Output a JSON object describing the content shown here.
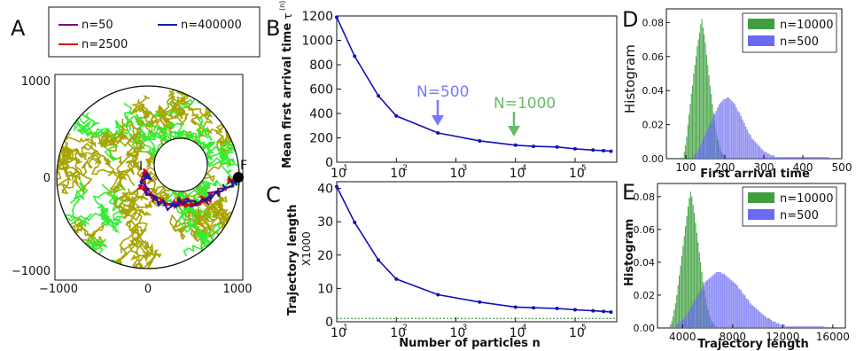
{
  "panel_letters": [
    "A",
    "B",
    "C",
    "D",
    "E"
  ],
  "colors": {
    "blue_line": "#1111bb",
    "green_hist": "#3f9f3f",
    "blue_hist": "#6a6af2",
    "overlap_hist": "#274f86",
    "annot_blue": "#7777ff",
    "annot_green": "#66bb66",
    "traj_n50": "#800080",
    "traj_n2500": "#e00000",
    "traj_n400000": "#1a1aa0",
    "fill_olive": "#a7a400",
    "fill_lime": "#33ee33",
    "dotted_green": "#2a7a2a"
  },
  "chart_data": [
    {
      "panel": "A",
      "type": "scatter",
      "title": "",
      "legend": {
        "placement": "top",
        "entries": [
          {
            "label": "n=50",
            "color": "#800080"
          },
          {
            "label": "n=400000",
            "color": "#1a1aa0"
          },
          {
            "label": "n=2500",
            "color": "#e00000"
          }
        ]
      },
      "xlim": [
        -1100,
        1100
      ],
      "ylim": [
        -1100,
        1100
      ],
      "xticks": [
        "−1000",
        "0",
        "1000"
      ],
      "yticks": [
        "1000",
        "0",
        "−1000"
      ],
      "annotations": [
        {
          "text": "I",
          "x": -30,
          "y": 60
        },
        {
          "text": "F",
          "x": 1050,
          "y": 40
        }
      ],
      "domain": {
        "outer_radius": 1000,
        "inner_radius": 300,
        "target": [
          1000,
          0
        ],
        "start": [
          -100,
          20
        ]
      }
    },
    {
      "panel": "B",
      "type": "line",
      "xlabel": "",
      "ylabel": "Mean first arrival time",
      "ylabel_superscript": "(n)",
      "ylabel_prefix": "τ",
      "xscale": "log",
      "xlim": [
        10,
        500000
      ],
      "ylim": [
        0,
        1200
      ],
      "xticks": [
        "10",
        "10",
        "10",
        "10",
        "10"
      ],
      "xtick_exponents": [
        "1",
        "2",
        "3",
        "4",
        "5"
      ],
      "yticks": [
        "0",
        "200",
        "400",
        "600",
        "800",
        "1000",
        "1200"
      ],
      "series": [
        {
          "x": [
            10,
            20,
            50,
            100,
            500,
            2500,
            10000,
            20000,
            50000,
            100000,
            200000,
            300000,
            400000
          ],
          "values": [
            1190,
            870,
            545,
            380,
            240,
            175,
            140,
            130,
            125,
            110,
            100,
            95,
            90
          ]
        }
      ],
      "annotations": [
        {
          "text": "N=500",
          "x": 500,
          "y": 240,
          "color": "#7777ff"
        },
        {
          "text": "N=1000",
          "x": 10000,
          "y": 140,
          "color": "#66bb66"
        }
      ],
      "grid": false
    },
    {
      "panel": "C",
      "type": "line",
      "xlabel": "Number of particles n",
      "ylabel": "Trajectory length",
      "ylabel_sub": "X1000",
      "xscale": "log",
      "xlim": [
        10,
        500000
      ],
      "ylim": [
        0,
        42
      ],
      "xticks": [
        "10",
        "10",
        "10",
        "10",
        "10"
      ],
      "xtick_exponents": [
        "1",
        "2",
        "3",
        "4",
        "5"
      ],
      "yticks": [
        "0",
        "10",
        "20",
        "30",
        "40"
      ],
      "series": [
        {
          "x": [
            10,
            20,
            50,
            100,
            500,
            2500,
            10000,
            20000,
            50000,
            100000,
            200000,
            300000,
            400000
          ],
          "values": [
            40.5,
            29.8,
            18.5,
            12.8,
            8.1,
            5.9,
            4.4,
            4.2,
            4.0,
            3.6,
            3.3,
            3.1,
            2.9
          ]
        }
      ],
      "reference_line": 1.0,
      "grid": false
    },
    {
      "panel": "D",
      "type": "bar",
      "xlabel": "First arrival time",
      "ylabel": "Histogram",
      "xlim": [
        50,
        500
      ],
      "ylim": [
        0,
        0.088
      ],
      "xticks": [
        "100",
        "200",
        "300",
        "400",
        "500"
      ],
      "yticks": [
        "0.00",
        "0.02",
        "0.04",
        "0.06",
        "0.08"
      ],
      "legend": {
        "placement": "top-right"
      },
      "series": [
        {
          "name": "n=10000",
          "color": "#3f9f3f",
          "bin_start": 95,
          "bin_width": 3,
          "values": [
            0.004,
            0.008,
            0.013,
            0.02,
            0.026,
            0.032,
            0.038,
            0.043,
            0.05,
            0.055,
            0.06,
            0.066,
            0.07,
            0.074,
            0.079,
            0.082,
            0.077,
            0.073,
            0.068,
            0.061,
            0.055,
            0.049,
            0.043,
            0.038,
            0.032,
            0.027,
            0.022,
            0.018,
            0.014,
            0.011,
            0.008,
            0.006,
            0.004,
            0.003,
            0.002,
            0.001
          ]
        },
        {
          "name": "n=500",
          "color": "#6a6af2",
          "bin_start": 120,
          "bin_width": 4,
          "values": [
            0.002,
            0.003,
            0.004,
            0.006,
            0.008,
            0.01,
            0.012,
            0.014,
            0.016,
            0.018,
            0.02,
            0.022,
            0.024,
            0.026,
            0.028,
            0.03,
            0.032,
            0.033,
            0.034,
            0.035,
            0.035,
            0.036,
            0.036,
            0.035,
            0.034,
            0.033,
            0.032,
            0.03,
            0.028,
            0.027,
            0.025,
            0.023,
            0.021,
            0.019,
            0.017,
            0.015,
            0.014,
            0.012,
            0.011,
            0.01,
            0.009,
            0.008,
            0.007,
            0.006,
            0.005,
            0.004,
            0.004,
            0.003,
            0.003,
            0.002,
            0.002,
            0.002,
            0.001,
            0.001,
            0.001,
            0.001,
            0.001,
            0.001,
            0.001,
            0.001,
            0.001,
            0.001,
            0.001,
            0.001,
            0.001,
            0.001,
            0.001,
            0.001,
            0.001,
            0.001,
            0.001,
            0.001,
            0.001,
            0.001,
            0.001,
            0.001,
            0.001,
            0.001,
            0.001,
            0.001,
            0.001,
            0.001,
            0.001,
            0.001,
            0.001,
            0.001,
            0.001
          ]
        }
      ]
    },
    {
      "panel": "E",
      "type": "bar",
      "xlabel": "Trajectory length",
      "ylabel": "Histogram",
      "xlim": [
        2000,
        17000
      ],
      "ylim": [
        0,
        0.088
      ],
      "xticks": [
        "4000",
        "8000",
        "12000",
        "16000"
      ],
      "yticks": [
        "0.00",
        "0.02",
        "0.04",
        "0.06",
        "0.08"
      ],
      "legend": {
        "placement": "top-right"
      },
      "series": [
        {
          "name": "n=10000",
          "color": "#3f9f3f",
          "bin_start": 3000,
          "bin_width": 100,
          "values": [
            0.002,
            0.004,
            0.007,
            0.011,
            0.015,
            0.02,
            0.026,
            0.032,
            0.038,
            0.044,
            0.05,
            0.056,
            0.062,
            0.068,
            0.074,
            0.079,
            0.083,
            0.08,
            0.075,
            0.07,
            0.064,
            0.058,
            0.052,
            0.046,
            0.04,
            0.034,
            0.028,
            0.023,
            0.018,
            0.014,
            0.011,
            0.008,
            0.006,
            0.004,
            0.003,
            0.002,
            0.001,
            0.001
          ]
        },
        {
          "name": "n=500",
          "color": "#6a6af2",
          "bin_start": 3500,
          "bin_width": 150,
          "values": [
            0.002,
            0.003,
            0.004,
            0.005,
            0.006,
            0.008,
            0.01,
            0.012,
            0.014,
            0.016,
            0.018,
            0.02,
            0.022,
            0.024,
            0.026,
            0.028,
            0.029,
            0.03,
            0.031,
            0.032,
            0.033,
            0.034,
            0.034,
            0.034,
            0.033,
            0.033,
            0.032,
            0.031,
            0.03,
            0.029,
            0.028,
            0.027,
            0.026,
            0.024,
            0.023,
            0.021,
            0.02,
            0.018,
            0.017,
            0.015,
            0.014,
            0.013,
            0.012,
            0.011,
            0.01,
            0.009,
            0.008,
            0.007,
            0.006,
            0.006,
            0.005,
            0.004,
            0.004,
            0.003,
            0.003,
            0.002,
            0.002,
            0.002,
            0.001,
            0.001,
            0.001,
            0.001,
            0.001,
            0.001,
            0.001,
            0.001,
            0.001,
            0.001,
            0.001,
            0.001,
            0.001,
            0.001,
            0.001,
            0.001,
            0.001,
            0.001,
            0.001,
            0.001,
            0.001
          ]
        }
      ]
    }
  ]
}
